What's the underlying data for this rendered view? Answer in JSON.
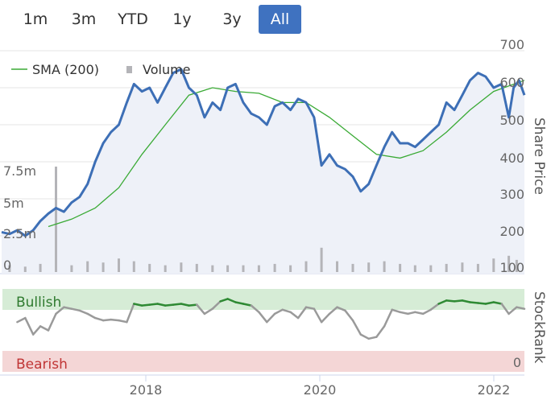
{
  "range_selector": {
    "buttons": [
      "1m",
      "3m",
      "YTD",
      "1y",
      "3y",
      "All"
    ],
    "active": "All"
  },
  "chart_data": [
    {
      "type": "line",
      "title": "",
      "legend": {
        "placement": "top-left",
        "entries": [
          "SMA (200)",
          "Volume"
        ]
      },
      "x_axis": {
        "type": "date",
        "ticks": [
          "2018",
          "2020",
          "2022"
        ],
        "range": [
          "2016-10-01",
          "2022-05-01"
        ]
      },
      "y_axis_right": {
        "label": "Share Price",
        "range": [
          80,
          700
        ],
        "ticks": [
          "700",
          "600",
          "500",
          "400",
          "300",
          "200",
          "100"
        ]
      },
      "y_axis_left": {
        "label": "Volume",
        "range": [
          0,
          13000000
        ],
        "ticks": [
          "7.5m",
          "5m",
          "2.5m",
          "0"
        ]
      },
      "grid": true,
      "colors": {
        "price": "#3d6fb6",
        "sma": "#3aaa35",
        "volume": "#b4b4b8",
        "area": "#eef1f8"
      },
      "series": [
        {
          "name": "",
          "points": [
            [
              "2016-10-01",
              210
            ],
            [
              "2016-11-01",
              205
            ],
            [
              "2016-12-01",
              215
            ],
            [
              "2017-01-01",
              200
            ],
            [
              "2017-02-01",
              215
            ],
            [
              "2017-03-01",
              240
            ],
            [
              "2017-04-01",
              260
            ],
            [
              "2017-05-01",
              275
            ],
            [
              "2017-06-01",
              265
            ],
            [
              "2017-07-01",
              290
            ],
            [
              "2017-08-01",
              305
            ],
            [
              "2017-09-01",
              340
            ],
            [
              "2017-10-01",
              400
            ],
            [
              "2017-11-01",
              450
            ],
            [
              "2017-12-01",
              480
            ],
            [
              "2018-01-01",
              500
            ],
            [
              "2018-02-01",
              560
            ],
            [
              "2018-03-01",
              610
            ],
            [
              "2018-04-01",
              590
            ],
            [
              "2018-05-01",
              600
            ],
            [
              "2018-06-01",
              560
            ],
            [
              "2018-07-01",
              600
            ],
            [
              "2018-08-01",
              640
            ],
            [
              "2018-09-01",
              650
            ],
            [
              "2018-10-01",
              600
            ],
            [
              "2018-11-01",
              580
            ],
            [
              "2018-12-01",
              520
            ],
            [
              "2019-01-01",
              560
            ],
            [
              "2019-02-01",
              540
            ],
            [
              "2019-03-01",
              600
            ],
            [
              "2019-04-01",
              610
            ],
            [
              "2019-05-01",
              560
            ],
            [
              "2019-06-01",
              530
            ],
            [
              "2019-07-01",
              520
            ],
            [
              "2019-08-01",
              500
            ],
            [
              "2019-09-01",
              550
            ],
            [
              "2019-10-01",
              560
            ],
            [
              "2019-11-01",
              540
            ],
            [
              "2019-12-01",
              570
            ],
            [
              "2020-01-01",
              560
            ],
            [
              "2020-02-01",
              520
            ],
            [
              "2020-03-01",
              390
            ],
            [
              "2020-04-01",
              420
            ],
            [
              "2020-05-01",
              390
            ],
            [
              "2020-06-01",
              380
            ],
            [
              "2020-07-01",
              360
            ],
            [
              "2020-08-01",
              320
            ],
            [
              "2020-09-01",
              340
            ],
            [
              "2020-10-01",
              390
            ],
            [
              "2020-11-01",
              440
            ],
            [
              "2020-12-01",
              480
            ],
            [
              "2021-01-01",
              450
            ],
            [
              "2021-02-01",
              450
            ],
            [
              "2021-03-01",
              440
            ],
            [
              "2021-04-01",
              460
            ],
            [
              "2021-05-01",
              480
            ],
            [
              "2021-06-01",
              500
            ],
            [
              "2021-07-01",
              560
            ],
            [
              "2021-08-01",
              540
            ],
            [
              "2021-09-01",
              580
            ],
            [
              "2021-10-01",
              620
            ],
            [
              "2021-11-01",
              640
            ],
            [
              "2021-12-01",
              630
            ],
            [
              "2022-01-01",
              600
            ],
            [
              "2022-02-01",
              610
            ],
            [
              "2022-03-01",
              520
            ],
            [
              "2022-03-20",
              600
            ],
            [
              "2022-04-10",
              620
            ],
            [
              "2022-05-01",
              580
            ]
          ]
        },
        {
          "name": "SMA (200)",
          "points": [
            [
              "2017-04-01",
              225
            ],
            [
              "2017-07-01",
              245
            ],
            [
              "2017-10-01",
              275
            ],
            [
              "2018-01-01",
              330
            ],
            [
              "2018-04-01",
              420
            ],
            [
              "2018-07-01",
              500
            ],
            [
              "2018-10-01",
              580
            ],
            [
              "2019-01-01",
              600
            ],
            [
              "2019-04-01",
              590
            ],
            [
              "2019-07-01",
              585
            ],
            [
              "2019-10-01",
              560
            ],
            [
              "2020-01-01",
              560
            ],
            [
              "2020-04-01",
              520
            ],
            [
              "2020-07-01",
              470
            ],
            [
              "2020-10-01",
              420
            ],
            [
              "2021-01-01",
              410
            ],
            [
              "2021-04-01",
              430
            ],
            [
              "2021-07-01",
              480
            ],
            [
              "2021-10-01",
              540
            ],
            [
              "2022-01-01",
              590
            ],
            [
              "2022-05-01",
              620
            ]
          ]
        },
        {
          "name": "Volume",
          "points": [
            [
              "2016-11-01",
              0.5
            ],
            [
              "2017-01-01",
              0.4
            ],
            [
              "2017-03-01",
              0.6
            ],
            [
              "2017-05-01",
              7.8
            ],
            [
              "2017-07-01",
              0.5
            ],
            [
              "2017-09-01",
              0.8
            ],
            [
              "2017-11-01",
              0.7
            ],
            [
              "2018-01-01",
              1.0
            ],
            [
              "2018-03-01",
              0.8
            ],
            [
              "2018-05-01",
              0.6
            ],
            [
              "2018-07-01",
              0.5
            ],
            [
              "2018-09-01",
              0.7
            ],
            [
              "2018-11-01",
              0.6
            ],
            [
              "2019-01-01",
              0.5
            ],
            [
              "2019-03-01",
              0.5
            ],
            [
              "2019-05-01",
              0.5
            ],
            [
              "2019-07-01",
              0.5
            ],
            [
              "2019-09-01",
              0.6
            ],
            [
              "2019-11-01",
              0.5
            ],
            [
              "2020-01-01",
              0.8
            ],
            [
              "2020-03-01",
              1.8
            ],
            [
              "2020-05-01",
              0.8
            ],
            [
              "2020-07-01",
              0.6
            ],
            [
              "2020-09-01",
              0.7
            ],
            [
              "2020-11-01",
              0.8
            ],
            [
              "2021-01-01",
              0.6
            ],
            [
              "2021-03-01",
              0.5
            ],
            [
              "2021-05-01",
              0.5
            ],
            [
              "2021-07-01",
              0.6
            ],
            [
              "2021-09-01",
              0.7
            ],
            [
              "2021-11-01",
              0.6
            ],
            [
              "2022-01-01",
              1.0
            ],
            [
              "2022-03-01",
              1.2
            ],
            [
              "2022-04-01",
              0.9
            ]
          ]
        }
      ]
    },
    {
      "type": "line",
      "title": "",
      "y_axis_right": {
        "label": "StockRank",
        "range": [
          0,
          100
        ],
        "ticks": [
          "0"
        ]
      },
      "bands": {
        "bullish_label": "Bullish",
        "bearish_label": "Bearish",
        "bullish_threshold": 80,
        "bearish_threshold": 20
      },
      "colors": {
        "neutral": "#9a9a9a",
        "bullish": "#2f8a34",
        "bullish_band": "#d6ecd6",
        "bearish_band": "#f4d6d6",
        "bullish_text": "#2f7a2f",
        "bearish_text": "#c03535"
      },
      "series": [
        {
          "name": "",
          "points": [
            [
              "2016-12-01",
              60
            ],
            [
              "2017-01-01",
              65
            ],
            [
              "2017-02-01",
              45
            ],
            [
              "2017-03-01",
              55
            ],
            [
              "2017-04-01",
              50
            ],
            [
              "2017-05-01",
              70
            ],
            [
              "2017-06-01",
              78
            ],
            [
              "2017-07-01",
              76
            ],
            [
              "2017-08-01",
              74
            ],
            [
              "2017-09-01",
              70
            ],
            [
              "2017-10-01",
              65
            ],
            [
              "2017-11-01",
              62
            ],
            [
              "2017-12-01",
              63
            ],
            [
              "2018-01-01",
              62
            ],
            [
              "2018-02-01",
              60
            ],
            [
              "2018-03-01",
              82
            ],
            [
              "2018-04-01",
              80
            ],
            [
              "2018-05-01",
              81
            ],
            [
              "2018-06-01",
              82
            ],
            [
              "2018-07-01",
              80
            ],
            [
              "2018-08-01",
              81
            ],
            [
              "2018-09-01",
              82
            ],
            [
              "2018-10-01",
              80
            ],
            [
              "2018-11-01",
              81
            ],
            [
              "2018-12-01",
              70
            ],
            [
              "2019-01-01",
              76
            ],
            [
              "2019-02-01",
              85
            ],
            [
              "2019-03-01",
              88
            ],
            [
              "2019-04-01",
              84
            ],
            [
              "2019-05-01",
              82
            ],
            [
              "2019-06-01",
              80
            ],
            [
              "2019-07-01",
              72
            ],
            [
              "2019-08-01",
              60
            ],
            [
              "2019-09-01",
              70
            ],
            [
              "2019-10-01",
              75
            ],
            [
              "2019-11-01",
              72
            ],
            [
              "2019-12-01",
              65
            ],
            [
              "2020-01-01",
              78
            ],
            [
              "2020-02-01",
              76
            ],
            [
              "2020-03-01",
              60
            ],
            [
              "2020-04-01",
              70
            ],
            [
              "2020-05-01",
              78
            ],
            [
              "2020-06-01",
              74
            ],
            [
              "2020-07-01",
              62
            ],
            [
              "2020-08-01",
              45
            ],
            [
              "2020-09-01",
              40
            ],
            [
              "2020-10-01",
              42
            ],
            [
              "2020-11-01",
              55
            ],
            [
              "2020-12-01",
              75
            ],
            [
              "2021-01-01",
              72
            ],
            [
              "2021-02-01",
              70
            ],
            [
              "2021-03-01",
              72
            ],
            [
              "2021-04-01",
              70
            ],
            [
              "2021-05-01",
              75
            ],
            [
              "2021-06-01",
              82
            ],
            [
              "2021-07-01",
              86
            ],
            [
              "2021-08-01",
              85
            ],
            [
              "2021-09-01",
              86
            ],
            [
              "2021-10-01",
              84
            ],
            [
              "2021-11-01",
              83
            ],
            [
              "2021-12-01",
              82
            ],
            [
              "2022-01-01",
              84
            ],
            [
              "2022-02-01",
              82
            ],
            [
              "2022-03-01",
              70
            ],
            [
              "2022-04-01",
              78
            ],
            [
              "2022-05-01",
              76
            ]
          ]
        }
      ]
    }
  ]
}
